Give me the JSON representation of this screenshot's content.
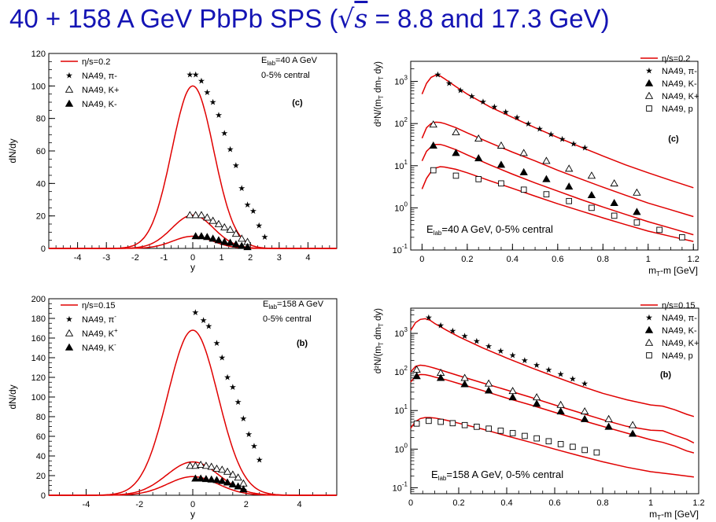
{
  "title": {
    "pre": "40 + 158 A GeV PbPb SPS (",
    "sqrt_symbol": "√",
    "sqrt_var": "s",
    "post": " = 8.8 and 17.3 GeV)"
  },
  "colors": {
    "title": "#1414b4",
    "model": "#e00000",
    "data": "#000000"
  },
  "chart_data": [
    {
      "type": "line",
      "id": "rapidity-40",
      "xlabel": "y",
      "ylabel": "dN/dy",
      "xlim": [
        -5,
        5
      ],
      "ylim": [
        0,
        120
      ],
      "xticks": [
        -4,
        -3,
        -2,
        -1,
        0,
        1,
        2,
        3,
        4
      ],
      "yticks": [
        0,
        20,
        40,
        60,
        80,
        100,
        120
      ],
      "log_y": false,
      "panel_tag": "(c)",
      "energy_label": "E",
      "energy_sub": "lab",
      "energy_tail": "=40 A GeV",
      "centrality": "0-5% central",
      "legend": [
        {
          "label": "η/s=0.2",
          "marker": "line"
        },
        {
          "label": "NA49, π-",
          "marker": "star"
        },
        {
          "label": "NA49, K+",
          "marker": "open-triangle"
        },
        {
          "label": "NA49, K-",
          "marker": "filled-triangle"
        }
      ],
      "series": [
        {
          "name": "η/s=0.2",
          "kind": "curve",
          "peak": 100,
          "width": 1.0
        },
        {
          "kind": "curve",
          "peak": 20.5,
          "width": 1.0
        },
        {
          "kind": "curve",
          "peak": 7.5,
          "width": 0.95
        },
        {
          "name": "NA49, π-",
          "marker": "star",
          "x": [
            -0.1,
            0.1,
            0.3,
            0.5,
            0.7,
            0.9,
            1.1,
            1.3,
            1.5,
            1.7,
            1.9,
            2.1,
            2.3,
            2.5
          ],
          "y": [
            107,
            107,
            103,
            96,
            90,
            82,
            71,
            61,
            51,
            37,
            27,
            23,
            14,
            7
          ]
        },
        {
          "name": "NA49, K+",
          "marker": "open-triangle",
          "x": [
            -0.1,
            0.1,
            0.3,
            0.5,
            0.7,
            0.9,
            1.1,
            1.3,
            1.5,
            1.7,
            1.9
          ],
          "y": [
            20.5,
            20.5,
            20.5,
            19,
            17,
            15,
            13,
            11.5,
            9,
            6,
            4
          ]
        },
        {
          "name": "NA49, K-",
          "marker": "filled-triangle",
          "x": [
            0.1,
            0.3,
            0.5,
            0.7,
            0.9,
            1.1,
            1.3,
            1.5,
            1.7,
            1.9
          ],
          "y": [
            7.5,
            7.5,
            7,
            6,
            5,
            4,
            3.5,
            2.5,
            1.5,
            0.8
          ]
        }
      ]
    },
    {
      "type": "line",
      "id": "mt-spectra-40",
      "xlabel": "m_T-m [GeV]",
      "ylabel": "d²N/(m_T dm_T dy)",
      "xlim": [
        -0.05,
        1.22
      ],
      "ylim": [
        0.1,
        3000
      ],
      "xticks": [
        0,
        0.2,
        0.4,
        0.6,
        0.8,
        1,
        1.2
      ],
      "yticks": [
        0.1,
        1,
        10,
        100,
        1000
      ],
      "log_y": true,
      "panel_tag": "(c)",
      "energy_label": "E",
      "energy_sub": "lab",
      "energy_tail": "=40 A GeV, 0-5% central",
      "legend": [
        {
          "label": "η/s=0.2",
          "marker": "line"
        },
        {
          "label": "NA49, π-",
          "marker": "star"
        },
        {
          "label": "NA49, K-",
          "marker": "filled-triangle"
        },
        {
          "label": "NA49, K+",
          "marker": "open-triangle"
        },
        {
          "label": "NA49, p",
          "marker": "open-square"
        }
      ],
      "series": [
        {
          "kind": "curve",
          "x": [
            0,
            0.02,
            0.04,
            0.06,
            0.08,
            0.1,
            0.15,
            0.2,
            0.3,
            0.4,
            0.5,
            0.6,
            0.7,
            0.8,
            0.9,
            1.0,
            1.1,
            1.2
          ],
          "y": [
            500,
            900,
            1250,
            1400,
            1350,
            1150,
            750,
            500,
            250,
            140,
            80,
            47,
            28,
            17,
            10.5,
            6.8,
            4.5,
            3.0
          ]
        },
        {
          "kind": "curve",
          "x": [
            0,
            0.02,
            0.04,
            0.06,
            0.08,
            0.1,
            0.15,
            0.2,
            0.3,
            0.4,
            0.5,
            0.6,
            0.7,
            0.8,
            0.9,
            1.0,
            1.1,
            1.2
          ],
          "y": [
            45,
            80,
            100,
            108,
            106,
            100,
            80,
            60,
            35,
            21,
            13,
            7.8,
            4.9,
            3.1,
            2.0,
            1.3,
            0.9,
            0.62
          ]
        },
        {
          "kind": "curve",
          "x": [
            0,
            0.02,
            0.04,
            0.06,
            0.08,
            0.1,
            0.15,
            0.2,
            0.3,
            0.4,
            0.5,
            0.6,
            0.7,
            0.8,
            0.9,
            1.0,
            1.1,
            1.2
          ],
          "y": [
            13,
            22,
            28,
            32,
            32,
            30,
            24,
            18,
            10.5,
            6.3,
            3.9,
            2.5,
            1.6,
            1.05,
            0.7,
            0.47,
            0.33,
            0.23
          ]
        },
        {
          "kind": "curve",
          "x": [
            0,
            0.02,
            0.04,
            0.06,
            0.08,
            0.1,
            0.15,
            0.2,
            0.3,
            0.4,
            0.5,
            0.6,
            0.7,
            0.8,
            0.9,
            1.0,
            1.1,
            1.2
          ],
          "y": [
            2.8,
            5,
            7.2,
            8.8,
            9.5,
            9.3,
            8.2,
            6.8,
            4.4,
            2.9,
            1.9,
            1.25,
            0.85,
            0.58,
            0.4,
            0.28,
            0.21,
            0.16
          ]
        },
        {
          "name": "NA49, π-",
          "marker": "star",
          "x": [
            0.07,
            0.12,
            0.17,
            0.22,
            0.27,
            0.32,
            0.37,
            0.42,
            0.47,
            0.52,
            0.57,
            0.62,
            0.67,
            0.72
          ],
          "y": [
            1450,
            900,
            620,
            450,
            330,
            250,
            190,
            140,
            100,
            75,
            56,
            43,
            33,
            27
          ]
        },
        {
          "name": "NA49, K+",
          "marker": "open-triangle",
          "x": [
            0.05,
            0.15,
            0.25,
            0.35,
            0.45,
            0.55,
            0.65,
            0.75,
            0.85,
            0.95
          ],
          "y": [
            95,
            62,
            44,
            30,
            20,
            13,
            8.5,
            5.8,
            3.8,
            2.3
          ]
        },
        {
          "name": "NA49, K-",
          "marker": "filled-triangle",
          "x": [
            0.05,
            0.15,
            0.25,
            0.35,
            0.45,
            0.55,
            0.65,
            0.75,
            0.85,
            0.95
          ],
          "y": [
            30,
            20,
            15,
            10.5,
            7,
            4.8,
            3.2,
            2.0,
            1.3,
            0.8
          ]
        },
        {
          "name": "NA49, p",
          "marker": "open-square",
          "x": [
            0.05,
            0.15,
            0.25,
            0.35,
            0.45,
            0.55,
            0.65,
            0.75,
            0.85,
            0.95,
            1.05,
            1.15
          ],
          "y": [
            7.8,
            5.8,
            4.8,
            3.8,
            2.7,
            2.1,
            1.45,
            1.0,
            0.65,
            0.45,
            0.3,
            0.2
          ]
        }
      ]
    },
    {
      "type": "line",
      "id": "rapidity-158",
      "xlabel": "y",
      "ylabel": "dN/dy",
      "xlim": [
        -5.4,
        5.4
      ],
      "ylim": [
        0,
        200
      ],
      "xticks": [
        -4,
        -2,
        0,
        2,
        4
      ],
      "yticks": [
        0,
        20,
        40,
        60,
        80,
        100,
        120,
        140,
        160,
        180,
        200
      ],
      "log_y": false,
      "panel_tag": "(b)",
      "energy_label": "E",
      "energy_sub": "lab",
      "energy_tail": "=158 A GeV",
      "centrality": "0-5% central",
      "legend": [
        {
          "label": "η/s=0.15",
          "marker": "line"
        },
        {
          "label": "NA49, π",
          "sup": "-",
          "marker": "star"
        },
        {
          "label": "NA49, K",
          "sup": "+",
          "marker": "open-triangle"
        },
        {
          "label": "NA49, K",
          "sup": "-",
          "marker": "filled-triangle"
        }
      ],
      "series": [
        {
          "name": "η/s=0.15",
          "kind": "curve",
          "peak": 168,
          "width": 1.3
        },
        {
          "kind": "curve",
          "peak": 34,
          "width": 1.35
        },
        {
          "kind": "curve",
          "peak": 19,
          "width": 1.3
        },
        {
          "name": "NA49, π",
          "marker": "star",
          "x": [
            0.1,
            0.4,
            0.6,
            0.9,
            1.1,
            1.3,
            1.5,
            1.7,
            1.9,
            2.1,
            2.3,
            2.5
          ],
          "y": [
            186,
            178,
            172,
            155,
            140,
            120,
            110,
            95,
            78,
            62,
            50,
            36
          ]
        },
        {
          "name": "NA49, K",
          "marker": "open-triangle",
          "x": [
            -0.1,
            0.1,
            0.3,
            0.5,
            0.7,
            0.9,
            1.1,
            1.3,
            1.5,
            1.7,
            1.9
          ],
          "y": [
            30,
            30,
            31,
            30,
            29,
            27,
            26,
            24,
            21,
            18,
            12
          ]
        },
        {
          "name": "NA49, K",
          "marker": "filled-triangle",
          "x": [
            0.1,
            0.3,
            0.5,
            0.7,
            0.9,
            1.1,
            1.3,
            1.5,
            1.7,
            1.9
          ],
          "y": [
            17,
            17,
            16.5,
            16,
            15.5,
            14.5,
            13,
            11,
            9,
            6
          ]
        }
      ]
    },
    {
      "type": "line",
      "id": "mt-spectra-158",
      "xlabel": "m_T-m [GeV]",
      "ylabel": "d²N/(m_T dm_T dy)",
      "xlim": [
        0,
        1.2
      ],
      "ylim": [
        0.07,
        4500
      ],
      "xticks": [
        0,
        0.2,
        0.4,
        0.6,
        0.8,
        1,
        1.2
      ],
      "yticks": [
        0.1,
        1,
        10,
        100,
        1000
      ],
      "log_y": true,
      "panel_tag": "(b)",
      "energy_label": "E",
      "energy_sub": "lab",
      "energy_tail": "=158 A GeV, 0-5% central",
      "legend": [
        {
          "label": "η/s=0.15",
          "marker": "line"
        },
        {
          "label": "NA49, π-",
          "marker": "star"
        },
        {
          "label": "NA49, K-",
          "marker": "filled-triangle"
        },
        {
          "label": "NA49, K+",
          "marker": "open-triangle"
        },
        {
          "label": "NA49, p",
          "marker": "open-square"
        }
      ],
      "series": [
        {
          "kind": "curve",
          "x": [
            0,
            0.02,
            0.04,
            0.06,
            0.08,
            0.1,
            0.15,
            0.2,
            0.3,
            0.4,
            0.5,
            0.6,
            0.7,
            0.8,
            0.9,
            1.0,
            1.05,
            1.1,
            1.15,
            1.18
          ],
          "y": [
            1200,
            1900,
            2300,
            2400,
            2200,
            1800,
            1200,
            820,
            420,
            230,
            130,
            76,
            45,
            28,
            19,
            14,
            13,
            10.5,
            8,
            7
          ]
        },
        {
          "kind": "curve",
          "x": [
            0,
            0.02,
            0.04,
            0.06,
            0.08,
            0.1,
            0.15,
            0.2,
            0.3,
            0.4,
            0.5,
            0.6,
            0.7,
            0.8,
            0.9,
            1.0,
            1.05,
            1.1,
            1.15,
            1.18
          ],
          "y": [
            100,
            140,
            150,
            145,
            135,
            125,
            100,
            80,
            52,
            34,
            22,
            14,
            9,
            5.8,
            3.9,
            3.1,
            3.0,
            2.3,
            1.8,
            1.45
          ]
        },
        {
          "kind": "curve",
          "x": [
            0,
            0.02,
            0.04,
            0.06,
            0.08,
            0.1,
            0.15,
            0.2,
            0.3,
            0.4,
            0.5,
            0.6,
            0.7,
            0.8,
            0.9,
            1.0,
            1.05,
            1.1,
            1.15,
            1.18
          ],
          "y": [
            55,
            78,
            86,
            85,
            80,
            74,
            62,
            50,
            33,
            21,
            14,
            9,
            5.9,
            3.9,
            2.6,
            1.75,
            1.5,
            1.2,
            0.9,
            0.8
          ]
        },
        {
          "kind": "curve",
          "x": [
            0,
            0.02,
            0.04,
            0.06,
            0.08,
            0.1,
            0.15,
            0.2,
            0.3,
            0.4,
            0.5,
            0.6,
            0.7,
            0.8,
            0.9,
            1.0,
            1.1,
            1.18
          ],
          "y": [
            3.5,
            5.2,
            6.2,
            6.6,
            6.6,
            6.4,
            5.6,
            4.7,
            3.3,
            2.2,
            1.5,
            1.0,
            0.68,
            0.47,
            0.34,
            0.26,
            0.22,
            0.19
          ]
        },
        {
          "name": "NA49, π-",
          "marker": "star",
          "x": [
            0.075,
            0.125,
            0.175,
            0.225,
            0.275,
            0.325,
            0.375,
            0.425,
            0.475,
            0.525,
            0.575,
            0.625,
            0.675,
            0.725
          ],
          "y": [
            2600,
            1600,
            1150,
            850,
            630,
            470,
            350,
            270,
            200,
            150,
            115,
            87,
            66,
            50
          ]
        },
        {
          "name": "NA49, K+",
          "marker": "open-triangle",
          "x": [
            0.025,
            0.125,
            0.225,
            0.325,
            0.425,
            0.525,
            0.625,
            0.725,
            0.825,
            0.925
          ],
          "y": [
            115,
            95,
            70,
            50,
            32,
            22,
            14,
            9.5,
            6,
            4.2
          ]
        },
        {
          "name": "NA49, K-",
          "marker": "filled-triangle",
          "x": [
            0.025,
            0.125,
            0.225,
            0.325,
            0.425,
            0.525,
            0.625,
            0.725,
            0.825,
            0.925
          ],
          "y": [
            78,
            70,
            48,
            33,
            22,
            15,
            9.5,
            6,
            3.8,
            2.5
          ]
        },
        {
          "name": "NA49, p",
          "marker": "open-square",
          "x": [
            0.025,
            0.075,
            0.125,
            0.175,
            0.225,
            0.275,
            0.325,
            0.375,
            0.425,
            0.475,
            0.525,
            0.575,
            0.625,
            0.675,
            0.725,
            0.775
          ],
          "y": [
            4.6,
            5.4,
            5.1,
            4.7,
            4.2,
            3.8,
            3.4,
            3.0,
            2.6,
            2.2,
            1.9,
            1.6,
            1.35,
            1.15,
            0.95,
            0.82
          ]
        }
      ]
    }
  ]
}
